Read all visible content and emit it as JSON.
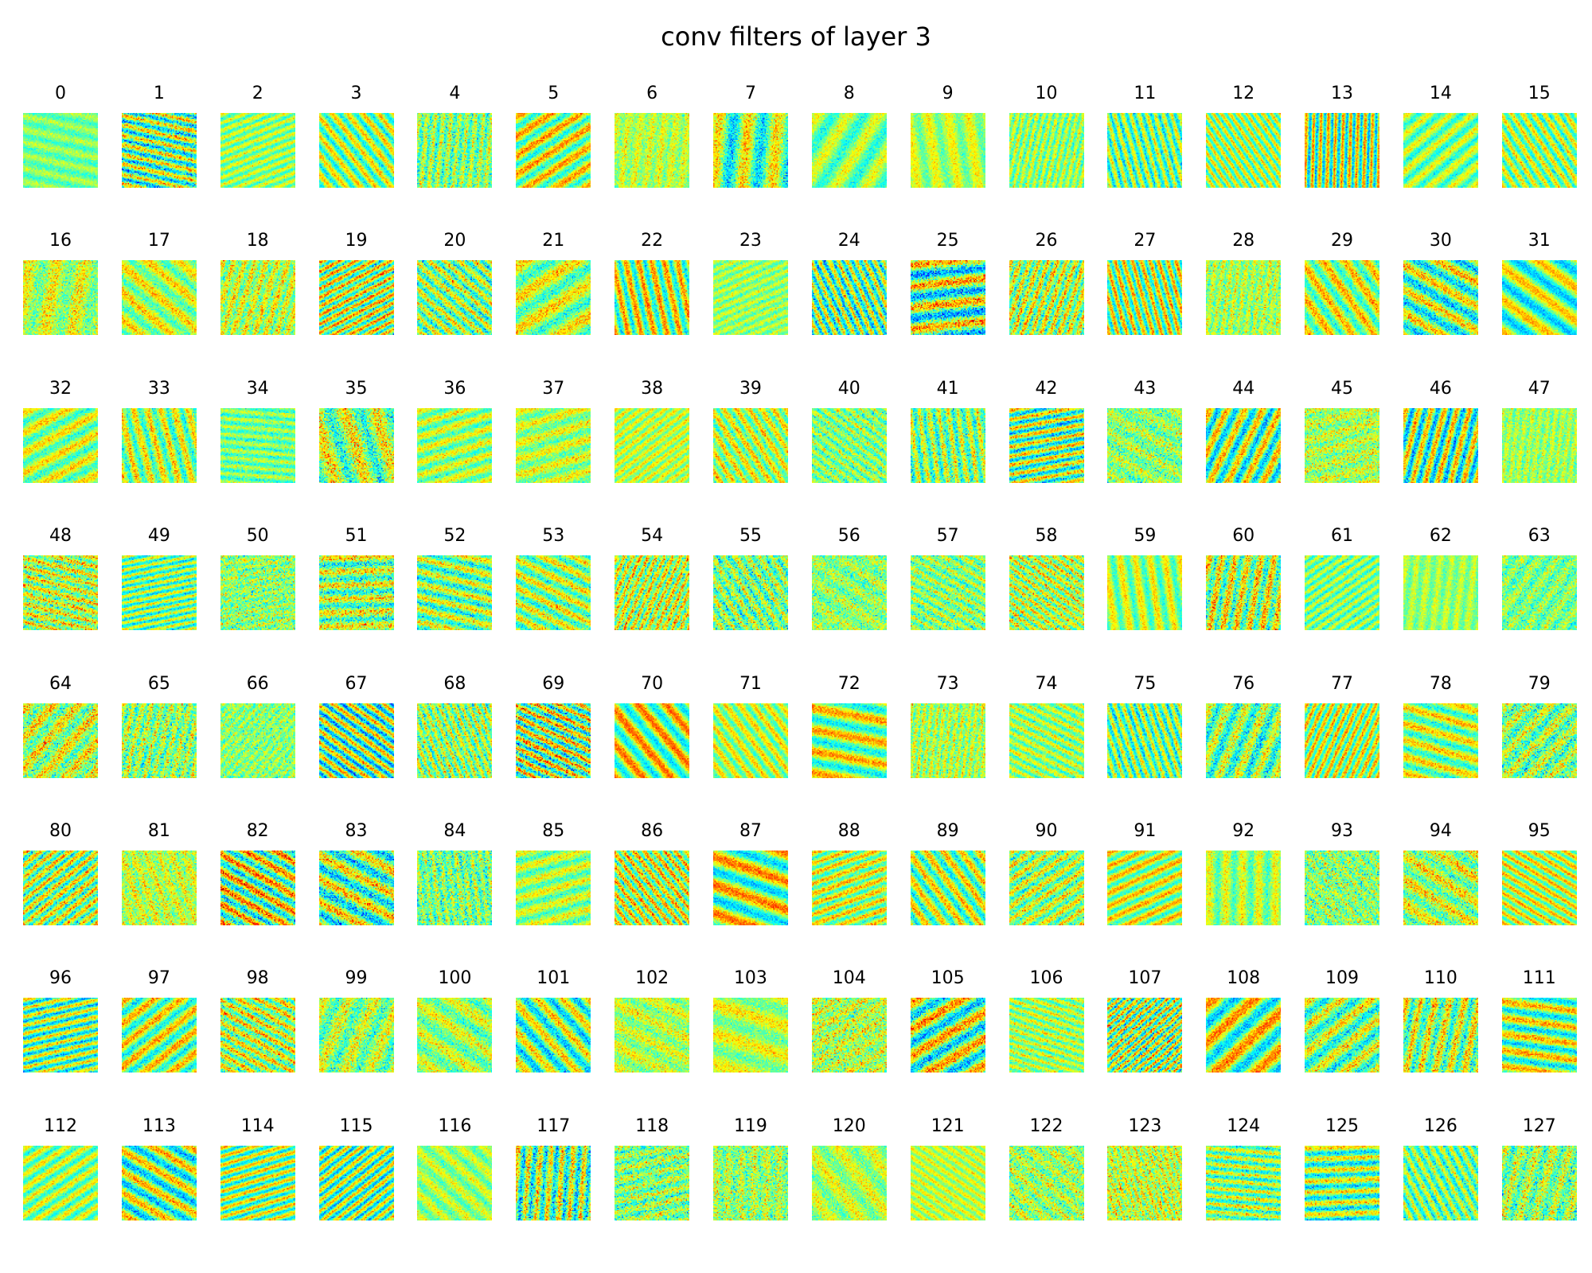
{
  "title": "conv filters of layer 3",
  "grid": {
    "columns": 16,
    "rows": 8
  },
  "colormap": "jet",
  "colors": {
    "background": "#ffffff",
    "text": "#000000"
  },
  "filters": [
    {
      "label": "0"
    },
    {
      "label": "1"
    },
    {
      "label": "2"
    },
    {
      "label": "3"
    },
    {
      "label": "4"
    },
    {
      "label": "5"
    },
    {
      "label": "6"
    },
    {
      "label": "7"
    },
    {
      "label": "8"
    },
    {
      "label": "9"
    },
    {
      "label": "10"
    },
    {
      "label": "11"
    },
    {
      "label": "12"
    },
    {
      "label": "13"
    },
    {
      "label": "14"
    },
    {
      "label": "15"
    },
    {
      "label": "16"
    },
    {
      "label": "17"
    },
    {
      "label": "18"
    },
    {
      "label": "19"
    },
    {
      "label": "20"
    },
    {
      "label": "21"
    },
    {
      "label": "22"
    },
    {
      "label": "23"
    },
    {
      "label": "24"
    },
    {
      "label": "25"
    },
    {
      "label": "26"
    },
    {
      "label": "27"
    },
    {
      "label": "28"
    },
    {
      "label": "29"
    },
    {
      "label": "30"
    },
    {
      "label": "31"
    },
    {
      "label": "32"
    },
    {
      "label": "33"
    },
    {
      "label": "34"
    },
    {
      "label": "35"
    },
    {
      "label": "36"
    },
    {
      "label": "37"
    },
    {
      "label": "38"
    },
    {
      "label": "39"
    },
    {
      "label": "40"
    },
    {
      "label": "41"
    },
    {
      "label": "42"
    },
    {
      "label": "43"
    },
    {
      "label": "44"
    },
    {
      "label": "45"
    },
    {
      "label": "46"
    },
    {
      "label": "47"
    },
    {
      "label": "48"
    },
    {
      "label": "49"
    },
    {
      "label": "50"
    },
    {
      "label": "51"
    },
    {
      "label": "52"
    },
    {
      "label": "53"
    },
    {
      "label": "54"
    },
    {
      "label": "55"
    },
    {
      "label": "56"
    },
    {
      "label": "57"
    },
    {
      "label": "58"
    },
    {
      "label": "59"
    },
    {
      "label": "60"
    },
    {
      "label": "61"
    },
    {
      "label": "62"
    },
    {
      "label": "63"
    },
    {
      "label": "64"
    },
    {
      "label": "65"
    },
    {
      "label": "66"
    },
    {
      "label": "67"
    },
    {
      "label": "68"
    },
    {
      "label": "69"
    },
    {
      "label": "70"
    },
    {
      "label": "71"
    },
    {
      "label": "72"
    },
    {
      "label": "73"
    },
    {
      "label": "74"
    },
    {
      "label": "75"
    },
    {
      "label": "76"
    },
    {
      "label": "77"
    },
    {
      "label": "78"
    },
    {
      "label": "79"
    },
    {
      "label": "80"
    },
    {
      "label": "81"
    },
    {
      "label": "82"
    },
    {
      "label": "83"
    },
    {
      "label": "84"
    },
    {
      "label": "85"
    },
    {
      "label": "86"
    },
    {
      "label": "87"
    },
    {
      "label": "88"
    },
    {
      "label": "89"
    },
    {
      "label": "90"
    },
    {
      "label": "91"
    },
    {
      "label": "92"
    },
    {
      "label": "93"
    },
    {
      "label": "94"
    },
    {
      "label": "95"
    },
    {
      "label": "96"
    },
    {
      "label": "97"
    },
    {
      "label": "98"
    },
    {
      "label": "99"
    },
    {
      "label": "100"
    },
    {
      "label": "101"
    },
    {
      "label": "102"
    },
    {
      "label": "103"
    },
    {
      "label": "104"
    },
    {
      "label": "105"
    },
    {
      "label": "106"
    },
    {
      "label": "107"
    },
    {
      "label": "108"
    },
    {
      "label": "109"
    },
    {
      "label": "110"
    },
    {
      "label": "111"
    },
    {
      "label": "112"
    },
    {
      "label": "113"
    },
    {
      "label": "114"
    },
    {
      "label": "115"
    },
    {
      "label": "116"
    },
    {
      "label": "117"
    },
    {
      "label": "118"
    },
    {
      "label": "119"
    },
    {
      "label": "120"
    },
    {
      "label": "121"
    },
    {
      "label": "122"
    },
    {
      "label": "123"
    },
    {
      "label": "124"
    },
    {
      "label": "125"
    },
    {
      "label": "126"
    },
    {
      "label": "127"
    }
  ]
}
